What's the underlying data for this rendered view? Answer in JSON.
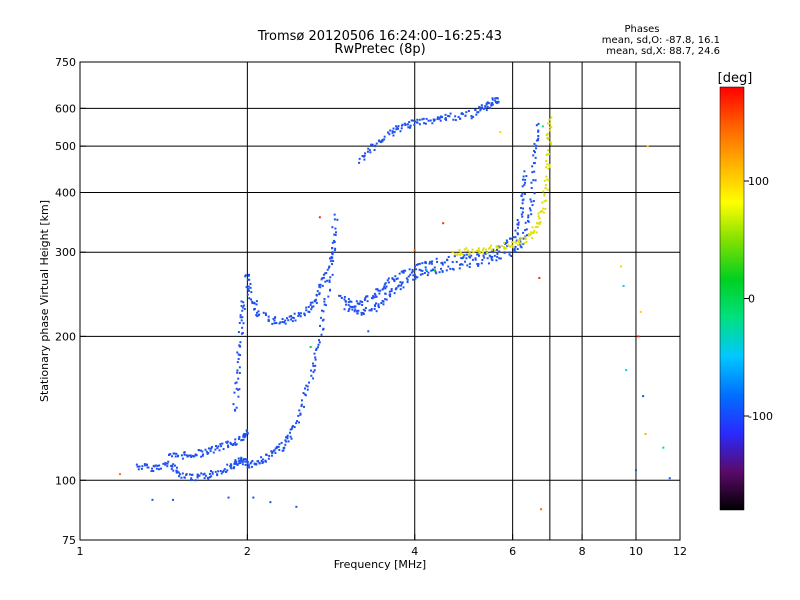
{
  "header": {
    "title_line1": "Tromsø 20120506 16:24:00–16:25:43",
    "title_line2": "RwPretec (8p)"
  },
  "stats": {
    "heading": "Phases",
    "line1": "mean, sd,O: -87.8, 16.1",
    "line2": "mean, sd,X:  88.7, 24.6"
  },
  "colorbar": {
    "unit_label": "[deg]",
    "range": [
      -180,
      180
    ],
    "ticks": [
      {
        "value": 100,
        "label": "100"
      },
      {
        "value": 0,
        "label": "0"
      },
      {
        "value": -100,
        "label": "-100"
      }
    ],
    "colors": [
      "#000000",
      "#5a0a6a",
      "#2a2aff",
      "#0070ff",
      "#00c8ff",
      "#00e080",
      "#00d020",
      "#80e000",
      "#ffff00",
      "#ffb000",
      "#ff6000",
      "#ff0000"
    ]
  },
  "chart_data": {
    "type": "scatter",
    "xlabel": "Frequency [MHz]",
    "ylabel": "Stationary phase Virtual Height [km]",
    "xscale": "log",
    "yscale": "log",
    "xlim": [
      1,
      12
    ],
    "ylim": [
      75,
      750
    ],
    "grid": true,
    "x_ticks": [
      {
        "value": 1,
        "label": "1"
      },
      {
        "value": 2,
        "label": "2"
      },
      {
        "value": 4,
        "label": "4"
      },
      {
        "value": 6,
        "label": "6"
      },
      {
        "value": 8,
        "label": "8"
      },
      {
        "value": 10,
        "label": "10"
      },
      {
        "value": 12,
        "label": "12"
      }
    ],
    "x_grid_values": [
      2,
      4,
      6,
      7,
      8,
      10
    ],
    "y_ticks": [
      {
        "value": 75,
        "label": "75"
      },
      {
        "value": 100,
        "label": "100"
      },
      {
        "value": 200,
        "label": "200"
      },
      {
        "value": 300,
        "label": "300"
      },
      {
        "value": 400,
        "label": "400"
      },
      {
        "value": 500,
        "label": "500"
      },
      {
        "value": 600,
        "label": "600"
      },
      {
        "value": 750,
        "label": "750"
      }
    ],
    "y_grid_values": [
      100,
      200,
      300,
      400,
      500,
      600
    ],
    "traces": [
      {
        "color": "#1e50f0",
        "points": [
          [
            1.27,
            107
          ],
          [
            1.35,
            106
          ],
          [
            1.45,
            108
          ],
          [
            1.5,
            104
          ],
          [
            1.6,
            101
          ],
          [
            1.7,
            102
          ],
          [
            1.8,
            105
          ],
          [
            1.9,
            108
          ],
          [
            1.95,
            110
          ],
          [
            2.0,
            108
          ],
          [
            2.1,
            109
          ],
          [
            2.2,
            113
          ],
          [
            2.3,
            117
          ],
          [
            2.4,
            124
          ],
          [
            2.5,
            140
          ],
          [
            2.6,
            165
          ],
          [
            2.7,
            195
          ],
          [
            2.78,
            240
          ],
          [
            2.85,
            300
          ],
          [
            2.88,
            360
          ]
        ]
      },
      {
        "color": "#1e50f0",
        "points": [
          [
            1.45,
            112
          ],
          [
            1.55,
            113
          ],
          [
            1.65,
            114
          ],
          [
            1.75,
            116
          ],
          [
            1.85,
            119
          ],
          [
            1.95,
            122
          ],
          [
            2.0,
            126
          ]
        ]
      },
      {
        "color": "#1e50f0",
        "points": [
          [
            1.9,
            140
          ],
          [
            1.93,
            170
          ],
          [
            1.95,
            210
          ],
          [
            1.97,
            240
          ]
        ]
      },
      {
        "color": "#1e50f0",
        "points": [
          [
            2.0,
            270
          ],
          [
            2.02,
            245
          ],
          [
            2.1,
            222
          ],
          [
            2.25,
            215
          ],
          [
            2.4,
            217
          ],
          [
            2.55,
            225
          ],
          [
            2.65,
            238
          ],
          [
            2.75,
            262
          ],
          [
            2.85,
            310
          ]
        ]
      },
      {
        "color": "#1e50f0",
        "points": [
          [
            2.95,
            240
          ],
          [
            3.1,
            232
          ],
          [
            3.3,
            240
          ],
          [
            3.5,
            252
          ],
          [
            3.7,
            265
          ],
          [
            4.0,
            278
          ],
          [
            4.3,
            285
          ],
          [
            4.8,
            290
          ],
          [
            5.3,
            295
          ],
          [
            5.7,
            305
          ],
          [
            6.1,
            325
          ],
          [
            6.25,
            380
          ],
          [
            6.35,
            450
          ]
        ]
      },
      {
        "color": "#1e50f0",
        "points": [
          [
            3.0,
            230
          ],
          [
            3.2,
            222
          ],
          [
            3.4,
            230
          ],
          [
            3.6,
            245
          ],
          [
            3.8,
            258
          ],
          [
            4.1,
            270
          ],
          [
            4.4,
            276
          ],
          [
            5.0,
            283
          ],
          [
            5.5,
            290
          ],
          [
            6.0,
            300
          ],
          [
            6.3,
            320
          ],
          [
            6.5,
            380
          ],
          [
            6.6,
            480
          ],
          [
            6.65,
            560
          ]
        ]
      },
      {
        "color": "#1e50f0",
        "points": [
          [
            3.2,
            468
          ],
          [
            3.4,
            500
          ],
          [
            3.6,
            530
          ],
          [
            3.8,
            548
          ],
          [
            4.0,
            560
          ],
          [
            4.3,
            568
          ],
          [
            4.6,
            575
          ],
          [
            5.0,
            580
          ],
          [
            5.3,
            600
          ],
          [
            5.5,
            615
          ],
          [
            5.7,
            630
          ]
        ]
      },
      {
        "color": "#e0e000",
        "points": [
          [
            4.7,
            300
          ],
          [
            5.1,
            302
          ],
          [
            5.5,
            305
          ],
          [
            5.9,
            310
          ],
          [
            6.3,
            318
          ],
          [
            6.6,
            335
          ],
          [
            6.8,
            365
          ],
          [
            6.9,
            420
          ],
          [
            6.97,
            500
          ],
          [
            7.0,
            580
          ]
        ]
      }
    ],
    "outliers": [
      {
        "x": 1.18,
        "y": 103,
        "color": "#ff7000"
      },
      {
        "x": 1.35,
        "y": 91,
        "color": "#1e50f0"
      },
      {
        "x": 1.47,
        "y": 91,
        "color": "#1e50f0"
      },
      {
        "x": 1.85,
        "y": 92,
        "color": "#1e50f0"
      },
      {
        "x": 2.05,
        "y": 92,
        "color": "#1e50f0"
      },
      {
        "x": 2.2,
        "y": 90,
        "color": "#1e50f0"
      },
      {
        "x": 2.45,
        "y": 88,
        "color": "#1e50f0"
      },
      {
        "x": 2.6,
        "y": 190,
        "color": "#00d040"
      },
      {
        "x": 2.7,
        "y": 355,
        "color": "#ff2020"
      },
      {
        "x": 3.3,
        "y": 205,
        "color": "#1e50f0"
      },
      {
        "x": 4.0,
        "y": 303,
        "color": "#ff6000"
      },
      {
        "x": 4.2,
        "y": 275,
        "color": "#00c8ff"
      },
      {
        "x": 4.35,
        "y": 275,
        "color": "#00d040"
      },
      {
        "x": 4.5,
        "y": 345,
        "color": "#ff3000"
      },
      {
        "x": 5.7,
        "y": 535,
        "color": "#ffd000"
      },
      {
        "x": 6.7,
        "y": 265,
        "color": "#ff3000"
      },
      {
        "x": 6.75,
        "y": 87,
        "color": "#ff7000"
      },
      {
        "x": 6.8,
        "y": 550,
        "color": "#00e080"
      },
      {
        "x": 9.4,
        "y": 280,
        "color": "#ffd000"
      },
      {
        "x": 9.5,
        "y": 255,
        "color": "#00c8ff"
      },
      {
        "x": 9.6,
        "y": 170,
        "color": "#00c8ff"
      },
      {
        "x": 10.0,
        "y": 105,
        "color": "#1e50f0"
      },
      {
        "x": 10.1,
        "y": 200,
        "color": "#ff2020"
      },
      {
        "x": 10.2,
        "y": 225,
        "color": "#ffd000"
      },
      {
        "x": 10.3,
        "y": 150,
        "color": "#1e50f0"
      },
      {
        "x": 10.5,
        "y": 500,
        "color": "#ffd000"
      },
      {
        "x": 10.4,
        "y": 125,
        "color": "#ffb000"
      },
      {
        "x": 11.2,
        "y": 117,
        "color": "#00e080"
      },
      {
        "x": 11.5,
        "y": 101,
        "color": "#1e50f0"
      }
    ]
  }
}
